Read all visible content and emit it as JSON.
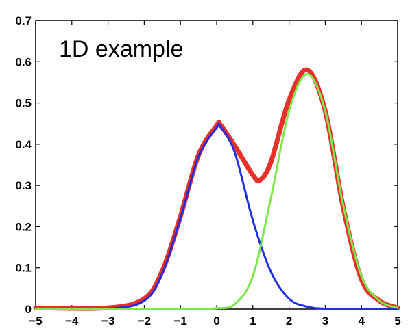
{
  "chart_data": {
    "type": "line",
    "title": "",
    "xlabel": "",
    "ylabel": "",
    "xlim": [
      -5,
      5
    ],
    "ylim": [
      0,
      0.7
    ],
    "grid": false,
    "x_ticks": [
      -5,
      -4,
      -3,
      -2,
      -1,
      0,
      1,
      2,
      3,
      4,
      5
    ],
    "x_tick_labels": [
      "−5",
      "−4",
      "−3",
      "−2",
      "−1",
      "0",
      "1",
      "2",
      "3",
      "4",
      "5"
    ],
    "y_ticks": [
      0,
      0.1,
      0.2,
      0.3,
      0.4,
      0.5,
      0.6,
      0.7
    ],
    "y_tick_labels": [
      "0",
      "0.1",
      "0.2",
      "0.3",
      "0.4",
      "0.5",
      "0.6",
      "0.7"
    ],
    "annotation": "1D example",
    "series": [
      {
        "color": "#e8302a",
        "x": [
          -5,
          -3,
          -2,
          -1.5,
          -1,
          -0.5,
          0,
          0.1,
          0.5,
          1,
          1.2,
          1.5,
          2,
          2.5,
          3,
          3.5,
          4,
          4.5,
          5
        ],
        "y": [
          0.003,
          0.003,
          0.025,
          0.093,
          0.225,
          0.374,
          0.445,
          0.447,
          0.396,
          0.325,
          0.313,
          0.357,
          0.507,
          0.58,
          0.48,
          0.245,
          0.072,
          0.02,
          0.003
        ]
      },
      {
        "color": "#1f2fe0",
        "x": [
          -5,
          -3,
          -2,
          -1.5,
          -1,
          -0.5,
          0,
          0.1,
          0.5,
          1,
          1.5,
          2,
          2.5,
          3,
          4,
          5
        ],
        "y": [
          0,
          0.001,
          0.02,
          0.087,
          0.22,
          0.37,
          0.44,
          0.443,
          0.38,
          0.215,
          0.09,
          0.025,
          0.006,
          0.001,
          0,
          0
        ]
      },
      {
        "color": "#7de84a",
        "x": [
          -5,
          -1,
          0,
          0.5,
          1,
          1.5,
          2,
          2.5,
          3,
          3.5,
          4,
          4.5,
          5
        ],
        "y": [
          0,
          0,
          0.002,
          0.012,
          0.08,
          0.27,
          0.48,
          0.57,
          0.48,
          0.25,
          0.08,
          0.02,
          0.003
        ]
      }
    ]
  }
}
